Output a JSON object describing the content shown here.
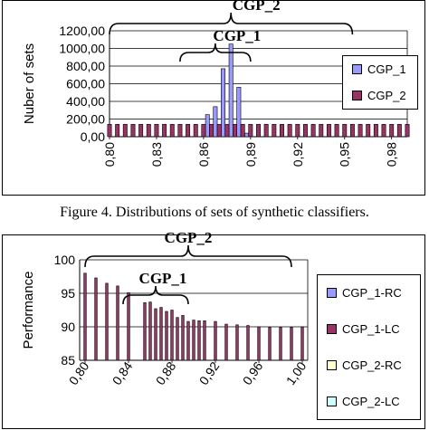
{
  "caption": "Figure 4. Distributions of sets of synthetic classifiers.",
  "chart_data": [
    {
      "type": "bar",
      "ylabel": "Nuber of sets",
      "xlabel": "",
      "ylim": [
        0,
        1200
      ],
      "yticks": [
        "0,00",
        "200,00",
        "400,00",
        "600,00",
        "800,00",
        "1000,00",
        "1200,00"
      ],
      "ytick_values": [
        0,
        200,
        400,
        600,
        800,
        1000,
        1200
      ],
      "xticks": [
        "0,80",
        "0,83",
        "0,86",
        "0,89",
        "0,92",
        "0,95",
        "0,98"
      ],
      "xlim": [
        0.8,
        0.99
      ],
      "grid": true,
      "legend": "right",
      "bar_width_data": 0.0025,
      "series": [
        {
          "name": "CGP_1",
          "color": "#9999ff",
          "points": [
            {
              "x": 0.8625,
              "y": 250
            },
            {
              "x": 0.8675,
              "y": 340
            },
            {
              "x": 0.8725,
              "y": 770
            },
            {
              "x": 0.8775,
              "y": 1050
            },
            {
              "x": 0.8825,
              "y": 560
            },
            {
              "x": 0.8875,
              "y": 40
            }
          ]
        },
        {
          "name": "CGP_2",
          "color": "#993366",
          "points": [
            {
              "x": 0.8,
              "y": 140
            },
            {
              "x": 0.805,
              "y": 140
            },
            {
              "x": 0.81,
              "y": 140
            },
            {
              "x": 0.815,
              "y": 140
            },
            {
              "x": 0.82,
              "y": 140
            },
            {
              "x": 0.825,
              "y": 140
            },
            {
              "x": 0.83,
              "y": 140
            },
            {
              "x": 0.835,
              "y": 140
            },
            {
              "x": 0.84,
              "y": 140
            },
            {
              "x": 0.845,
              "y": 140
            },
            {
              "x": 0.85,
              "y": 140
            },
            {
              "x": 0.855,
              "y": 140
            },
            {
              "x": 0.86,
              "y": 140
            },
            {
              "x": 0.865,
              "y": 140
            },
            {
              "x": 0.87,
              "y": 140
            },
            {
              "x": 0.875,
              "y": 140
            },
            {
              "x": 0.88,
              "y": 140
            },
            {
              "x": 0.885,
              "y": 140
            },
            {
              "x": 0.89,
              "y": 140
            },
            {
              "x": 0.895,
              "y": 140
            },
            {
              "x": 0.9,
              "y": 140
            },
            {
              "x": 0.905,
              "y": 140
            },
            {
              "x": 0.91,
              "y": 140
            },
            {
              "x": 0.915,
              "y": 140
            },
            {
              "x": 0.92,
              "y": 140
            },
            {
              "x": 0.925,
              "y": 140
            },
            {
              "x": 0.93,
              "y": 140
            },
            {
              "x": 0.935,
              "y": 140
            },
            {
              "x": 0.94,
              "y": 140
            },
            {
              "x": 0.945,
              "y": 140
            },
            {
              "x": 0.95,
              "y": 140
            },
            {
              "x": 0.955,
              "y": 140
            },
            {
              "x": 0.96,
              "y": 140
            },
            {
              "x": 0.965,
              "y": 140
            },
            {
              "x": 0.97,
              "y": 140
            },
            {
              "x": 0.975,
              "y": 140
            },
            {
              "x": 0.98,
              "y": 140
            },
            {
              "x": 0.985,
              "y": 140
            },
            {
              "x": 0.99,
              "y": 140
            }
          ]
        }
      ],
      "annotations": [
        {
          "text": "CGP_2",
          "range": [
            0.8,
            0.955
          ]
        },
        {
          "text": "CGP_1",
          "range": [
            0.845,
            0.89
          ]
        }
      ]
    },
    {
      "type": "bar",
      "ylabel": "Performance",
      "xlabel": "",
      "ylim": [
        85,
        100
      ],
      "yticks": [
        "85",
        "90",
        "95",
        "100"
      ],
      "ytick_values": [
        85,
        90,
        95,
        100
      ],
      "xticks": [
        "0,80",
        "0,84",
        "0,88",
        "0,92",
        "0,96",
        "1,00"
      ],
      "xtick_values": [
        0.8,
        0.84,
        0.88,
        0.92,
        0.96,
        1.0
      ],
      "xlim": [
        0.795,
        1.005
      ],
      "grid": true,
      "legend": "right",
      "bar_width_data": 0.0022,
      "series": [
        {
          "name": "CGP_1-RC",
          "color": "#9999ff",
          "points": []
        },
        {
          "name": "CGP_1-LC",
          "color": "#993366",
          "points": [
            {
              "x": 0.8,
              "y": 98.0
            },
            {
              "x": 0.81,
              "y": 97.3
            },
            {
              "x": 0.82,
              "y": 96.5
            },
            {
              "x": 0.83,
              "y": 96.1
            },
            {
              "x": 0.84,
              "y": 95.1
            },
            {
              "x": 0.855,
              "y": 93.6
            },
            {
              "x": 0.86,
              "y": 93.7
            },
            {
              "x": 0.865,
              "y": 92.7
            },
            {
              "x": 0.87,
              "y": 92.9
            },
            {
              "x": 0.875,
              "y": 92.3
            },
            {
              "x": 0.88,
              "y": 92.5
            },
            {
              "x": 0.885,
              "y": 91.4
            },
            {
              "x": 0.89,
              "y": 91.7
            },
            {
              "x": 0.895,
              "y": 90.8
            },
            {
              "x": 0.9,
              "y": 91.0
            },
            {
              "x": 0.905,
              "y": 90.9
            },
            {
              "x": 0.91,
              "y": 90.9
            },
            {
              "x": 0.92,
              "y": 90.8
            },
            {
              "x": 0.93,
              "y": 90.4
            },
            {
              "x": 0.94,
              "y": 90.3
            },
            {
              "x": 0.95,
              "y": 90.2
            },
            {
              "x": 0.96,
              "y": 90.0
            },
            {
              "x": 0.97,
              "y": 89.9
            },
            {
              "x": 0.98,
              "y": 89.9
            },
            {
              "x": 0.99,
              "y": 89.9
            },
            {
              "x": 1.0,
              "y": 90.0
            }
          ]
        },
        {
          "name": "CGP_2-RC",
          "color": "#ffffcc",
          "points": []
        },
        {
          "name": "CGP_2-LC",
          "color": "#ccffff",
          "points": []
        }
      ],
      "annotations": [
        {
          "text": "CGP_2",
          "range": [
            0.8,
            0.99
          ]
        },
        {
          "text": "CGP_1",
          "range": [
            0.835,
            0.895
          ]
        }
      ]
    }
  ]
}
